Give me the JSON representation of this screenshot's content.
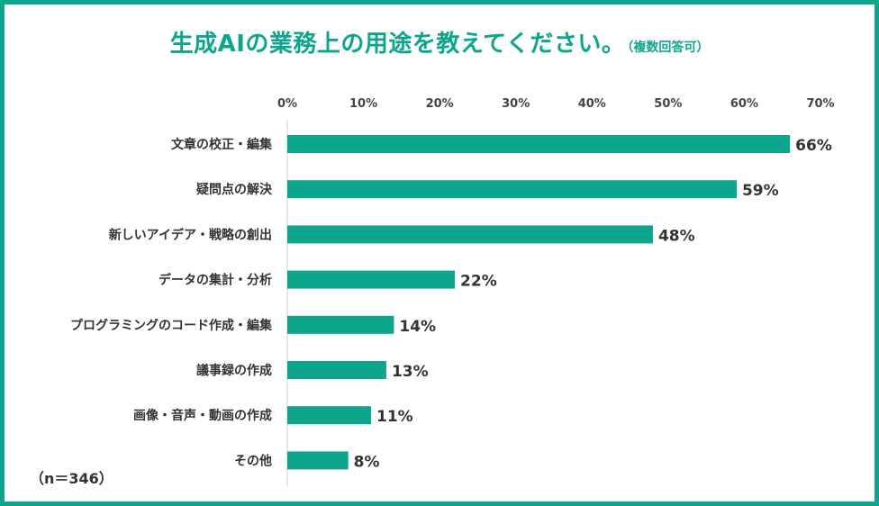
{
  "title": {
    "main": "生成AIの業務上の用途を教えてください。",
    "note": "（複数回答可）"
  },
  "sample_size": "（n＝346）",
  "colors": {
    "accent": "#0ea58d",
    "text": "#333333",
    "axis_text": "#444444"
  },
  "chart_data": {
    "type": "bar",
    "orientation": "horizontal",
    "categories": [
      "文章の校正・編集",
      "疑問点の解決",
      "新しいアイデア・戦略の創出",
      "データの集計・分析",
      "プログラミングのコード作成・編集",
      "議事録の作成",
      "画像・音声・動画の作成",
      "その他"
    ],
    "values": [
      66,
      59,
      48,
      22,
      14,
      13,
      11,
      8
    ],
    "data_labels": [
      "66%",
      "59%",
      "48%",
      "22%",
      "14%",
      "13%",
      "11%",
      "8%"
    ],
    "xlim": [
      0,
      70
    ],
    "xticks": [
      "0%",
      "10%",
      "20%",
      "30%",
      "40%",
      "50%",
      "60%",
      "70%"
    ],
    "x_axis_position": "top",
    "grid": false,
    "legend": "none"
  }
}
